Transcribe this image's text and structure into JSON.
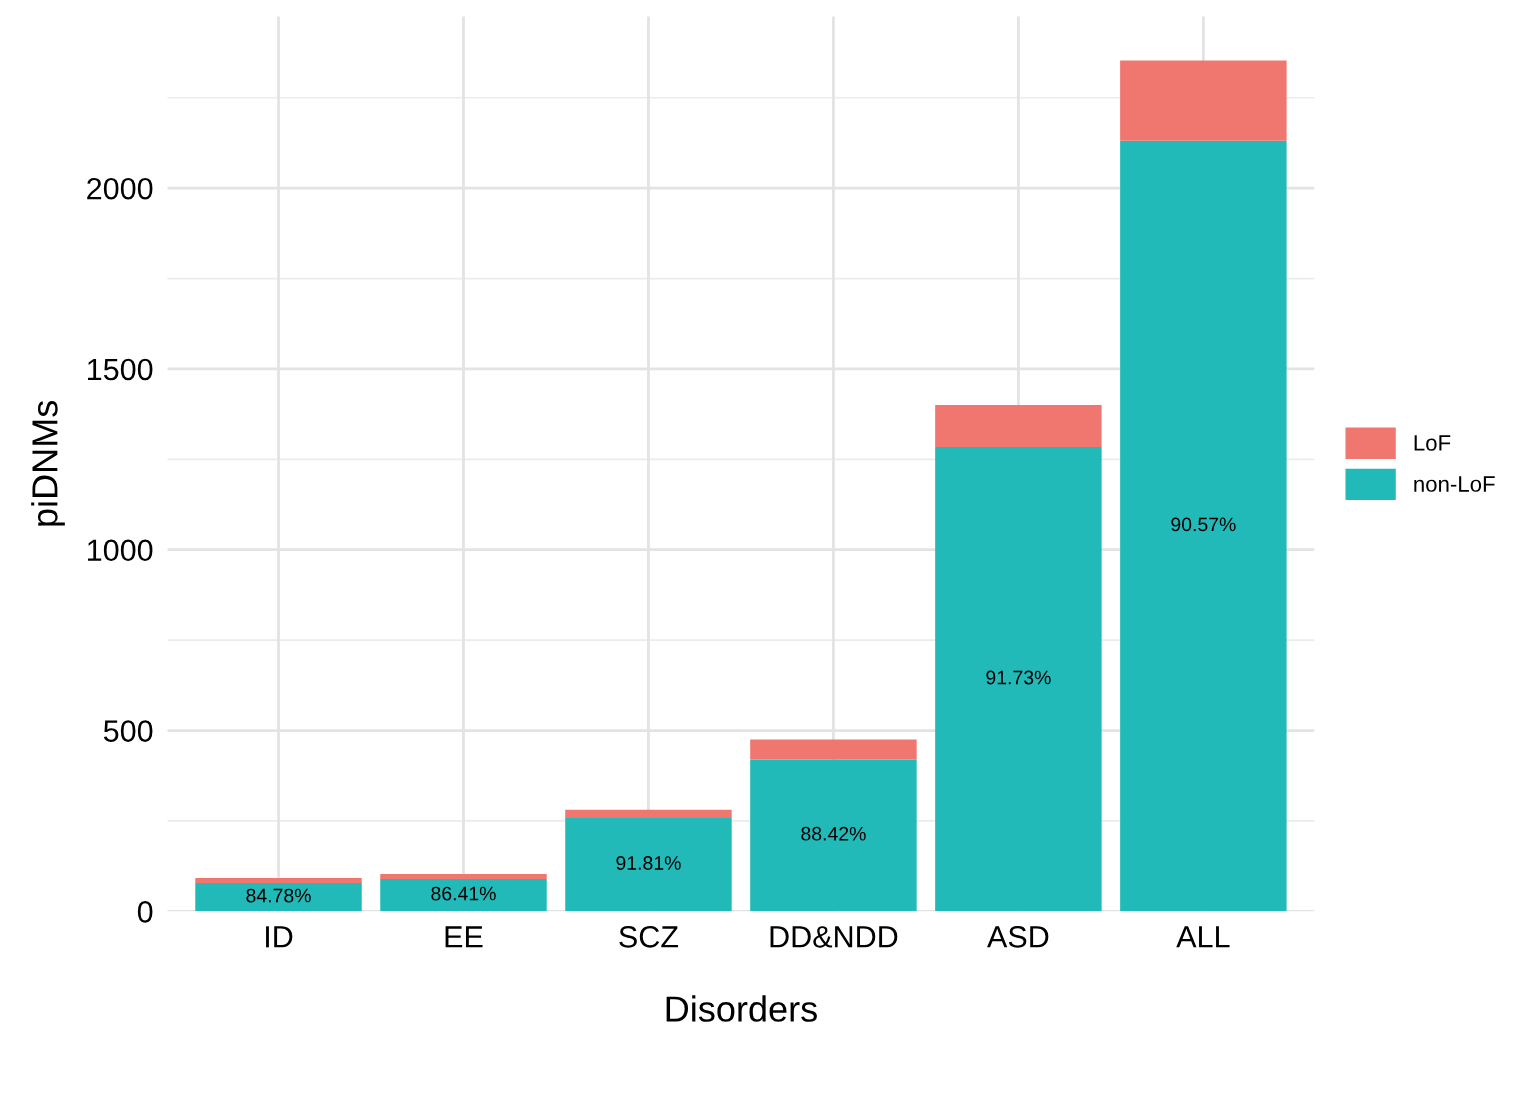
{
  "chart_data": {
    "type": "bar",
    "stacked": true,
    "xlabel": "Disorders",
    "ylabel": "piDNMs",
    "categories": [
      "ID",
      "EE",
      "SCZ",
      "DD&NDD",
      "ASD",
      "ALL"
    ],
    "series": [
      {
        "name": "non-LoF",
        "color": "#21bab8",
        "values": [
          78,
          89,
          258,
          420,
          1284,
          2131
        ]
      },
      {
        "name": "LoF",
        "color": "#f07670",
        "values": [
          14,
          14,
          23,
          55,
          116,
          222
        ]
      }
    ],
    "annotations": [
      "84.78%",
      "86.41%",
      "91.81%",
      "88.42%",
      "91.73%",
      "90.57%"
    ],
    "ylim": [
      0,
      2475
    ],
    "yticks": [
      0,
      500,
      1000,
      1500,
      2000
    ],
    "grid": true,
    "legend": "right"
  }
}
